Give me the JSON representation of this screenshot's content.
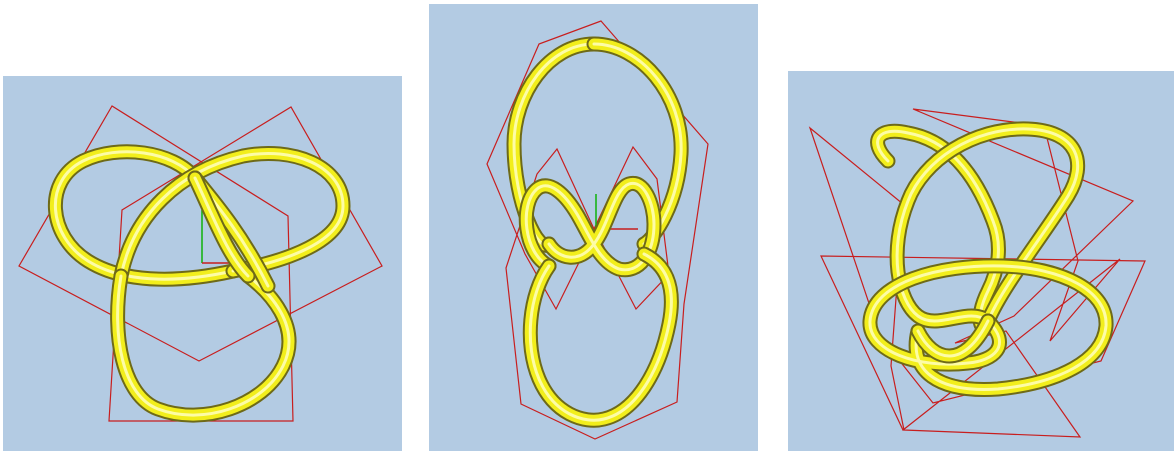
{
  "panels": [
    {
      "name": "trefoil-front-view",
      "background_color": "#b3cbe3",
      "tube_color": "#f2ee1c",
      "frame_color": "#c81e1e",
      "axis_colors": {
        "vertical": "#18b418",
        "horizontal": "#c81e1e"
      }
    },
    {
      "name": "knot-side-view",
      "background_color": "#b3cbe3",
      "tube_color": "#f2ee1c",
      "frame_color": "#c81e1e",
      "axis_colors": {
        "vertical": "#18b418",
        "horizontal": "#c81e1e"
      }
    },
    {
      "name": "knot-perspective-view",
      "background_color": "#b3cbe3",
      "tube_color": "#f2ee1c",
      "frame_color": "#c81e1e"
    }
  ]
}
